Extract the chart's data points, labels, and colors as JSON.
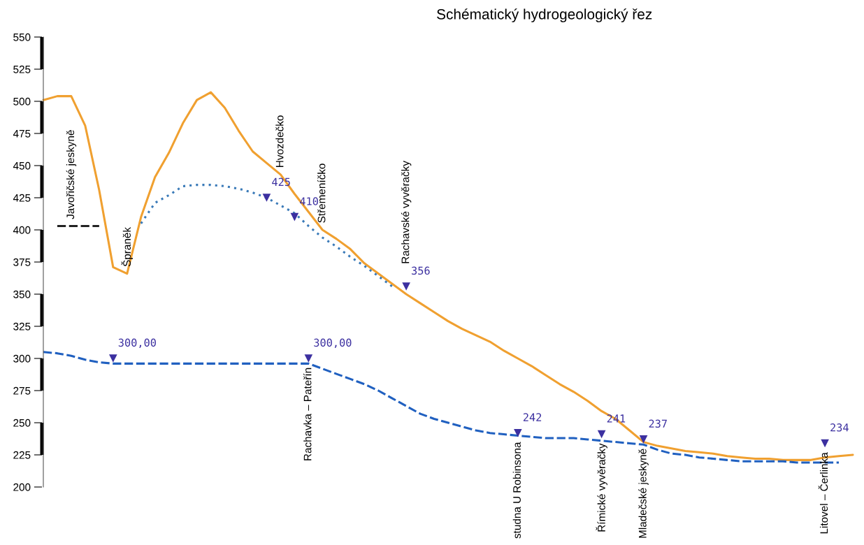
{
  "chart_data": {
    "type": "line",
    "title": "Schématický hydrogeologický řez",
    "categories": [
      null,
      null,
      "Javořičské jeskyně",
      null,
      null,
      null,
      "Špraněk",
      null,
      null,
      null,
      null,
      null,
      null,
      null,
      null,
      null,
      null,
      "Hvozdečko",
      null,
      "Rachavka – Pateřín",
      "Střemeníčko",
      null,
      null,
      null,
      null,
      null,
      "Rachavské vyvěračky",
      null,
      null,
      null,
      null,
      null,
      null,
      null,
      "studna U Robinsona",
      null,
      null,
      null,
      null,
      null,
      "Římické vyvěračky",
      null,
      null,
      "Mladečské jeskyně",
      null,
      null,
      null,
      null,
      null,
      null,
      null,
      null,
      null,
      null,
      null,
      null,
      "Litovel – Čerlinka",
      null,
      null
    ],
    "series": [
      {
        "type": "line",
        "color": "#f0a030",
        "line_style": "solid",
        "values": [
          501,
          504,
          504,
          481,
          431,
          371,
          366,
          410,
          441,
          460,
          483,
          501,
          507,
          495,
          477,
          461,
          452,
          443,
          428,
          414,
          400,
          393,
          385,
          374,
          366,
          358,
          350,
          343,
          336,
          329,
          323,
          318,
          313,
          306,
          300,
          294,
          287,
          280,
          274,
          267,
          259,
          253,
          244,
          235,
          232,
          230,
          228,
          227,
          226,
          224,
          223,
          222,
          222,
          221,
          221,
          221,
          223,
          224,
          225
        ]
      },
      {
        "type": "line",
        "color": "#3a7ab8",
        "line_style": "dotted",
        "values": [
          null,
          null,
          null,
          null,
          null,
          null,
          null,
          405,
          421,
          427,
          434,
          435,
          435,
          434,
          432,
          429,
          425,
          419,
          413,
          403,
          394,
          387,
          379,
          372,
          364,
          356,
          null,
          null,
          null,
          null,
          null,
          null,
          null,
          null,
          null,
          null,
          null,
          null,
          null,
          null,
          null,
          null,
          null,
          null,
          null,
          null,
          null,
          null,
          null,
          null,
          null,
          null,
          null,
          null,
          null,
          null,
          null,
          null,
          null
        ]
      },
      {
        "type": "line",
        "color": "#2060c0",
        "line_style": "dashed",
        "values": [
          305,
          304,
          302,
          299,
          297,
          296,
          296,
          296,
          296,
          296,
          296,
          296,
          296,
          296,
          296,
          296,
          296,
          296,
          296,
          296,
          292,
          288,
          284,
          280,
          275,
          269,
          263,
          257,
          253,
          250,
          247,
          244,
          242,
          241,
          240,
          239,
          238,
          238,
          238,
          237,
          236,
          235,
          234,
          233,
          229,
          226,
          225,
          223,
          222,
          221,
          220,
          220,
          220,
          220,
          219,
          219,
          219,
          219,
          null
        ]
      },
      {
        "type": "line",
        "color": "#222222",
        "line_style": "dashed",
        "values": [
          null,
          403,
          403,
          403,
          403,
          null,
          null,
          null,
          null,
          null,
          null,
          null,
          null,
          null,
          null,
          null,
          null,
          null,
          null,
          null,
          null,
          null,
          null,
          null,
          null,
          null,
          null,
          null,
          null,
          null,
          null,
          null,
          null,
          null,
          null,
          null,
          null,
          null,
          null,
          null,
          null,
          null,
          null,
          null,
          null,
          null,
          null,
          null,
          null,
          null,
          null,
          null,
          null,
          null,
          null,
          null,
          null,
          null,
          null
        ]
      },
      {
        "type": "scatter",
        "color": "#3c30a0",
        "marker": "triangle",
        "values": [
          null,
          null,
          null,
          null,
          null,
          300,
          null,
          null,
          null,
          null,
          null,
          null,
          null,
          null,
          null,
          null,
          425,
          null,
          410,
          300,
          null,
          null,
          null,
          null,
          null,
          null,
          356,
          null,
          null,
          null,
          null,
          null,
          null,
          null,
          242,
          null,
          null,
          null,
          null,
          null,
          241,
          null,
          null,
          237,
          null,
          null,
          null,
          null,
          null,
          null,
          null,
          null,
          null,
          null,
          null,
          null,
          234,
          null,
          null
        ],
        "value_labels": [
          null,
          null,
          null,
          null,
          null,
          "300,00",
          null,
          null,
          null,
          null,
          null,
          null,
          null,
          null,
          null,
          null,
          "425",
          null,
          "410",
          "300,00",
          null,
          null,
          null,
          null,
          null,
          null,
          "356",
          null,
          null,
          null,
          null,
          null,
          null,
          null,
          "242",
          null,
          null,
          null,
          null,
          null,
          "241",
          null,
          null,
          "237",
          null,
          null,
          null,
          null,
          null,
          null,
          null,
          null,
          null,
          null,
          null,
          null,
          "234",
          null,
          null
        ]
      }
    ],
    "ylim": [
      200,
      550
    ],
    "yticks": [
      200,
      225,
      250,
      275,
      300,
      325,
      350,
      375,
      400,
      425,
      450,
      475,
      500,
      525,
      550
    ],
    "tick_labels": "y",
    "grid": false,
    "legend": false
  }
}
